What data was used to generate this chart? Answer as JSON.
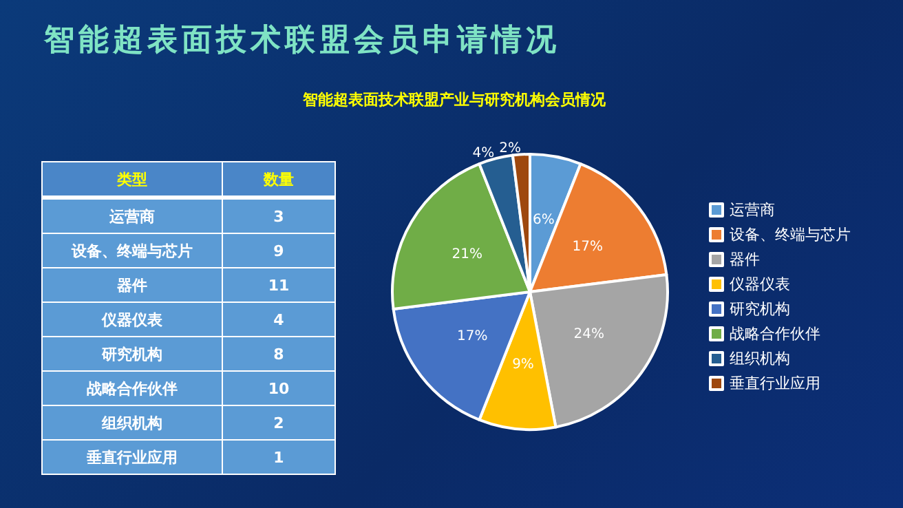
{
  "chart_data": [
    {
      "type": "other",
      "title": "智能超表面技术联盟会员申请情况",
      "annotations": [
        "类型",
        "数量"
      ],
      "categories": [
        "运营商",
        "设备、终端与芯片",
        "器件",
        "仪器仪表",
        "研究机构",
        "战略合作伙伴",
        "组织机构",
        "垂直行业应用"
      ],
      "values": [
        3,
        9,
        11,
        4,
        8,
        10,
        2,
        1
      ],
      "data_labels": true
    },
    {
      "type": "pie",
      "title": "智能超表面技术联盟产业与研究机构会员情况",
      "categories": [
        "运营商",
        "设备、终端与芯片",
        "器件",
        "仪器仪表",
        "研究机构",
        "战略合作伙伴",
        "组织机构",
        "垂直行业应用"
      ],
      "values": [
        6,
        17,
        24,
        9,
        17,
        21,
        4,
        2
      ],
      "value_labels": [
        "6%",
        "17%",
        "24%",
        "9%",
        "17%",
        "21%",
        "4%",
        "2%"
      ],
      "colors": [
        "#5b9bd5",
        "#ed7d31",
        "#a5a5a5",
        "#ffc000",
        "#4472c4",
        "#70ad47",
        "#255e91",
        "#9e480e"
      ],
      "legend": "right"
    }
  ]
}
